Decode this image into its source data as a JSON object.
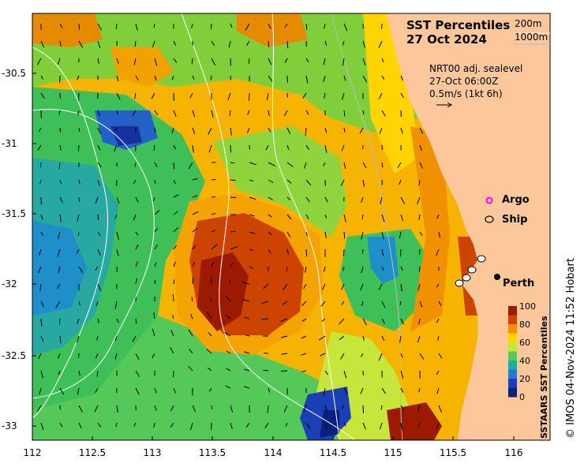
{
  "title": "SST Percentiles",
  "date": "27 Oct 2024",
  "isobaths": [
    "200m",
    "1000m"
  ],
  "current_note": {
    "line1": "NRT00 adj. sealevel",
    "line2": "27-Oct 06:00Z",
    "line3": "0.5m/s (1kt 6h)"
  },
  "legend": {
    "argo": "Argo",
    "ship": "Ship"
  },
  "place_label": "Perth",
  "axes": {
    "lat_ticks": [
      "-30.5",
      "-31",
      "-31.5",
      "-32",
      "-32.5",
      "-33"
    ],
    "lon_ticks": [
      "112",
      "112.5",
      "113",
      "113.5",
      "114",
      "114.5",
      "115",
      "115.5",
      "116"
    ]
  },
  "colorbar": {
    "label": "SSTAARS SST Percentiles",
    "ticks": [
      "100",
      "80",
      "60",
      "40",
      "20",
      "0"
    ],
    "colors": [
      "#9b1a00",
      "#cc4400",
      "#f29100",
      "#ffd400",
      "#c7e63c",
      "#55c85a",
      "#1fae9e",
      "#2678d4",
      "#1c3fb5",
      "#0b1f80"
    ]
  },
  "credit": "© IMOS 04-Nov-2024 11:52 Hobart",
  "colors": {
    "land": "#fcc79a",
    "isobath": "#ffffff"
  }
}
